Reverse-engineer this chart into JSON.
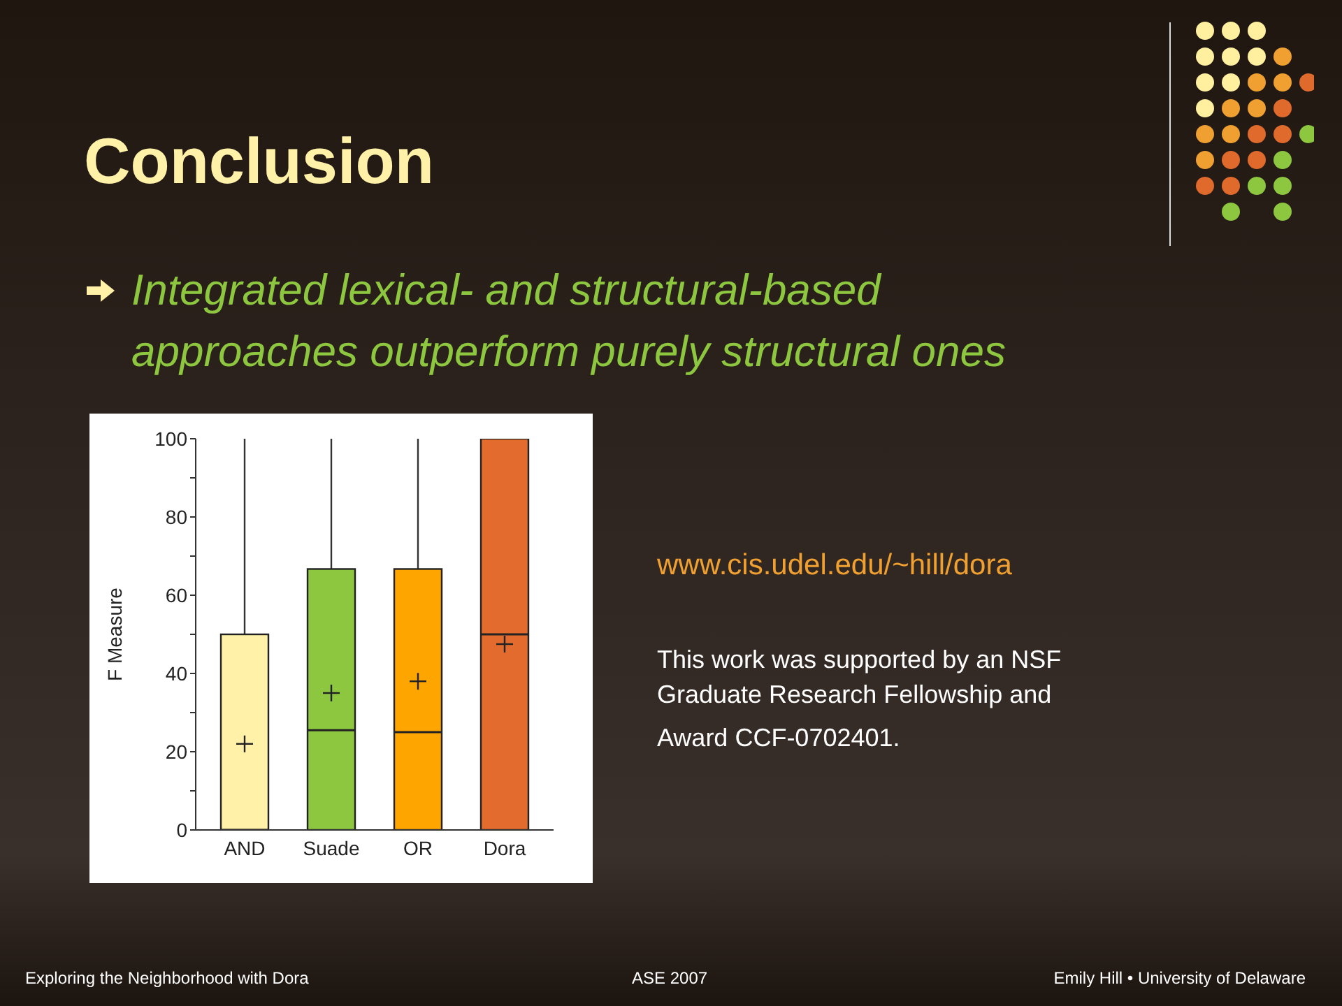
{
  "chart_data": {
    "type": "box",
    "title": "Conclusion",
    "subtitle": "Integrated lexical- and structural-based approaches outperform purely structural ones",
    "ylabel": "F Measure",
    "categories": [
      "AND",
      "Suade",
      "OR",
      "Dora"
    ],
    "colors": [
      "#fff2a8",
      "#8dc63f",
      "#ffa500",
      "#e36b2e"
    ],
    "boxes": [
      {
        "low": 0,
        "q1": 0,
        "median": 0,
        "q3": 50,
        "high": 100,
        "mean": 22
      },
      {
        "low": 0,
        "q1": 0,
        "median": 25.5,
        "q3": 66.7,
        "high": 100,
        "mean": 35
      },
      {
        "low": 0,
        "q1": 0,
        "median": 25,
        "q3": 66.7,
        "high": 100,
        "mean": 38
      },
      {
        "low": 0,
        "q1": 0,
        "median": 50,
        "q3": 100,
        "high": 100,
        "mean": 47.5
      }
    ],
    "ylim": [
      0,
      100
    ],
    "yticks": [
      0,
      {
        "value": 10,
        "label": null
      },
      20,
      {
        "value": 30,
        "label": null
      },
      40,
      {
        "value": 50,
        "label": null
      },
      60,
      {
        "value": 70,
        "label": null
      },
      80,
      {
        "value": 90,
        "label": null
      },
      100
    ],
    "grid": false,
    "legend": false,
    "annotations": [
      "www.cis.udel.edu/~hill/dora",
      "This work was supported by an NSF Graduate Research Fellowship and",
      "Award CCF-0702401.",
      "Exploring the Neighborhood with Dora",
      "ASE 2007",
      "Emily Hill • University  of Delaware"
    ]
  }
}
